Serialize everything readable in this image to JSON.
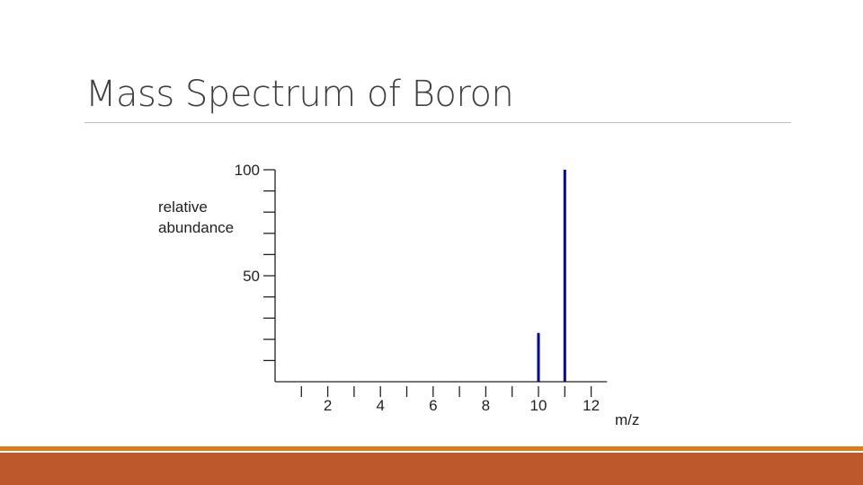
{
  "slide": {
    "title": "Mass Spectrum of Boron",
    "accent_color": "#E07B1A",
    "footer_color": "#BD582C"
  },
  "chart_data": {
    "type": "bar",
    "title": "",
    "xlabel": "m/z",
    "ylabel": "relative abundance",
    "ylabel_lines": [
      "relative",
      "abundance"
    ],
    "xlim": [
      0,
      12.6
    ],
    "ylim": [
      0,
      100
    ],
    "x_ticks": [
      2,
      4,
      6,
      8,
      10,
      12
    ],
    "y_tick_labels": [
      50,
      100
    ],
    "y_minor_step": 10,
    "x_minor_step": 1,
    "bar_color": "#0000B0",
    "series": [
      {
        "points": [
          {
            "x": 10,
            "y": 23
          },
          {
            "x": 11,
            "y": 100
          }
        ]
      }
    ]
  }
}
